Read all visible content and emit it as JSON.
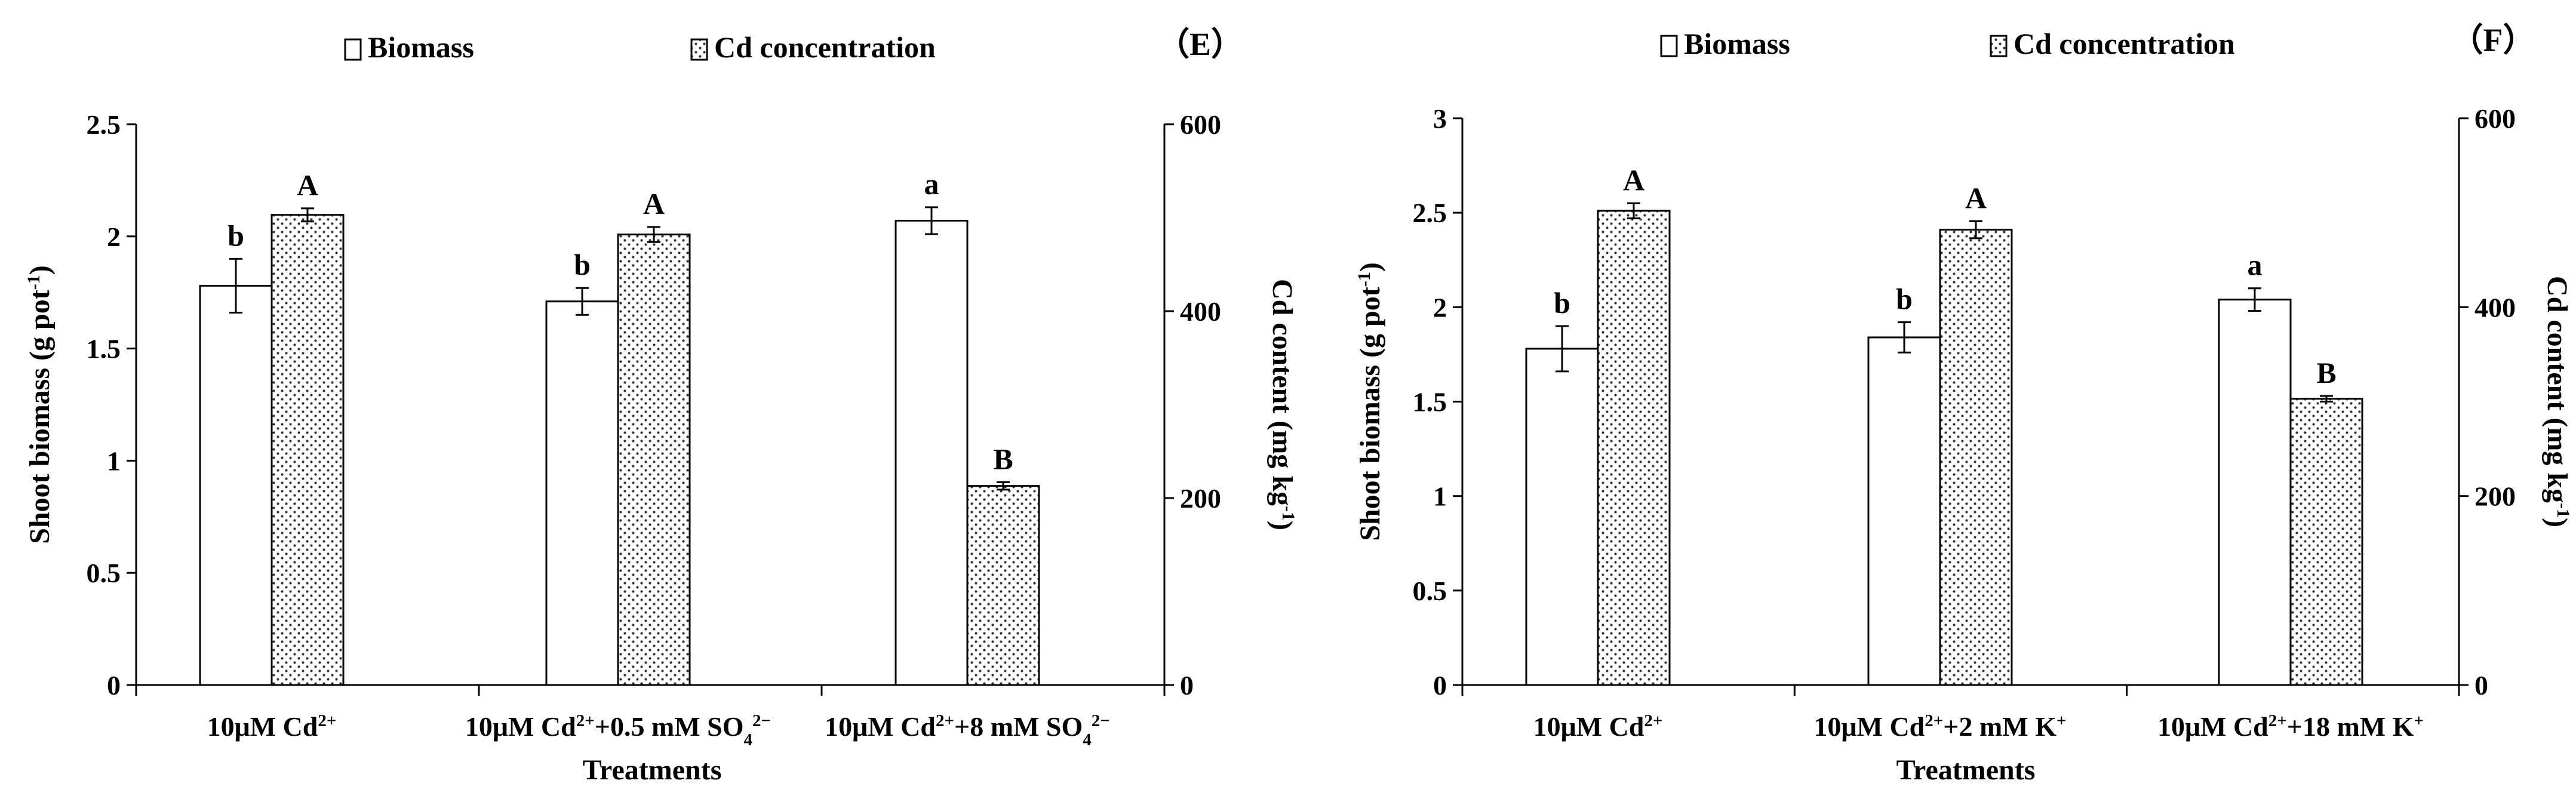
{
  "colors": {
    "axis": "#000000",
    "bar_fill": "#ffffff",
    "bar_stroke": "#000000",
    "pattern_dot": "#333333"
  },
  "chart_data": [
    {
      "type": "bar",
      "panel_label": "（E）",
      "legend": {
        "placement": "top-center",
        "entries": [
          {
            "name": "Biomass",
            "style": "open"
          },
          {
            "name": "Cd concentration",
            "style": "dotted"
          }
        ]
      },
      "xlabel": "Treatments",
      "categories": [
        [
          {
            "t": "10μM Cd"
          },
          {
            "t": "2+",
            "sup": true
          }
        ],
        [
          {
            "t": "10μM Cd"
          },
          {
            "t": "2+",
            "sup": true
          },
          {
            "t": "+0.5 mM SO"
          },
          {
            "t": "4",
            "sub": true
          },
          {
            "t": "2−",
            "sup": true
          }
        ],
        [
          {
            "t": "10μM Cd"
          },
          {
            "t": "2+",
            "sup": true
          },
          {
            "t": "+8 mM SO"
          },
          {
            "t": "4",
            "sub": true
          },
          {
            "t": "2−",
            "sup": true
          }
        ]
      ],
      "y_left": {
        "label": [
          {
            "t": "Shoot biomass (g pot"
          },
          {
            "t": "-1",
            "sup": true
          },
          {
            "t": ")"
          }
        ],
        "range": [
          0,
          2.5
        ],
        "ticks": [
          "0",
          "0.5",
          "1",
          "1.5",
          "2",
          "2.5"
        ]
      },
      "y_right": {
        "label": [
          {
            "t": "Cd content (mg kg"
          },
          {
            "t": "-1",
            "sup": true
          },
          {
            "t": ")"
          }
        ],
        "range": [
          0,
          600
        ],
        "ticks": [
          "0",
          "200",
          "400",
          "600"
        ]
      },
      "series": [
        {
          "name": "Biomass",
          "axis": "left",
          "values": [
            1.78,
            1.71,
            2.07
          ],
          "errors": [
            0.12,
            0.06,
            0.06
          ],
          "letters": [
            "b",
            "b",
            "a"
          ]
        },
        {
          "name": "Cd concentration",
          "axis": "right",
          "values": [
            503,
            482,
            213
          ],
          "errors": [
            7,
            8,
            4
          ],
          "letters": [
            "A",
            "A",
            "B"
          ]
        }
      ]
    },
    {
      "type": "bar",
      "panel_label": "（F）",
      "legend": {
        "placement": "top-center",
        "entries": [
          {
            "name": "Biomass",
            "style": "open"
          },
          {
            "name": "Cd concentration",
            "style": "dotted"
          }
        ]
      },
      "xlabel": "Treatments",
      "categories": [
        [
          {
            "t": "10μM Cd"
          },
          {
            "t": "2+",
            "sup": true
          }
        ],
        [
          {
            "t": "10μM Cd"
          },
          {
            "t": "2+",
            "sup": true
          },
          {
            "t": "+2 mM K"
          },
          {
            "t": "+",
            "sup": true
          }
        ],
        [
          {
            "t": "10μM Cd"
          },
          {
            "t": "2+",
            "sup": true
          },
          {
            "t": "+18 mM K"
          },
          {
            "t": "+",
            "sup": true
          }
        ]
      ],
      "y_left": {
        "label": [
          {
            "t": "Shoot biomass (g pot"
          },
          {
            "t": "-1",
            "sup": true
          },
          {
            "t": ")"
          }
        ],
        "range": [
          0,
          3
        ],
        "ticks": [
          "0",
          "0.5",
          "1",
          "1.5",
          "2",
          "2.5",
          "3"
        ]
      },
      "y_right": {
        "label": [
          {
            "t": "Cd content (mg kg"
          },
          {
            "t": "-1",
            "sup": true
          },
          {
            "t": ")"
          }
        ],
        "range": [
          0,
          600
        ],
        "ticks": [
          "0",
          "200",
          "400",
          "600"
        ]
      },
      "series": [
        {
          "name": "Biomass",
          "axis": "left",
          "values": [
            1.78,
            1.84,
            2.04
          ],
          "errors": [
            0.12,
            0.08,
            0.06
          ],
          "letters": [
            "b",
            "b",
            "a"
          ]
        },
        {
          "name": "Cd concentration",
          "axis": "right",
          "values": [
            502,
            482,
            303
          ],
          "errors": [
            8,
            9,
            3
          ],
          "letters": [
            "A",
            "A",
            "B"
          ]
        }
      ]
    }
  ]
}
